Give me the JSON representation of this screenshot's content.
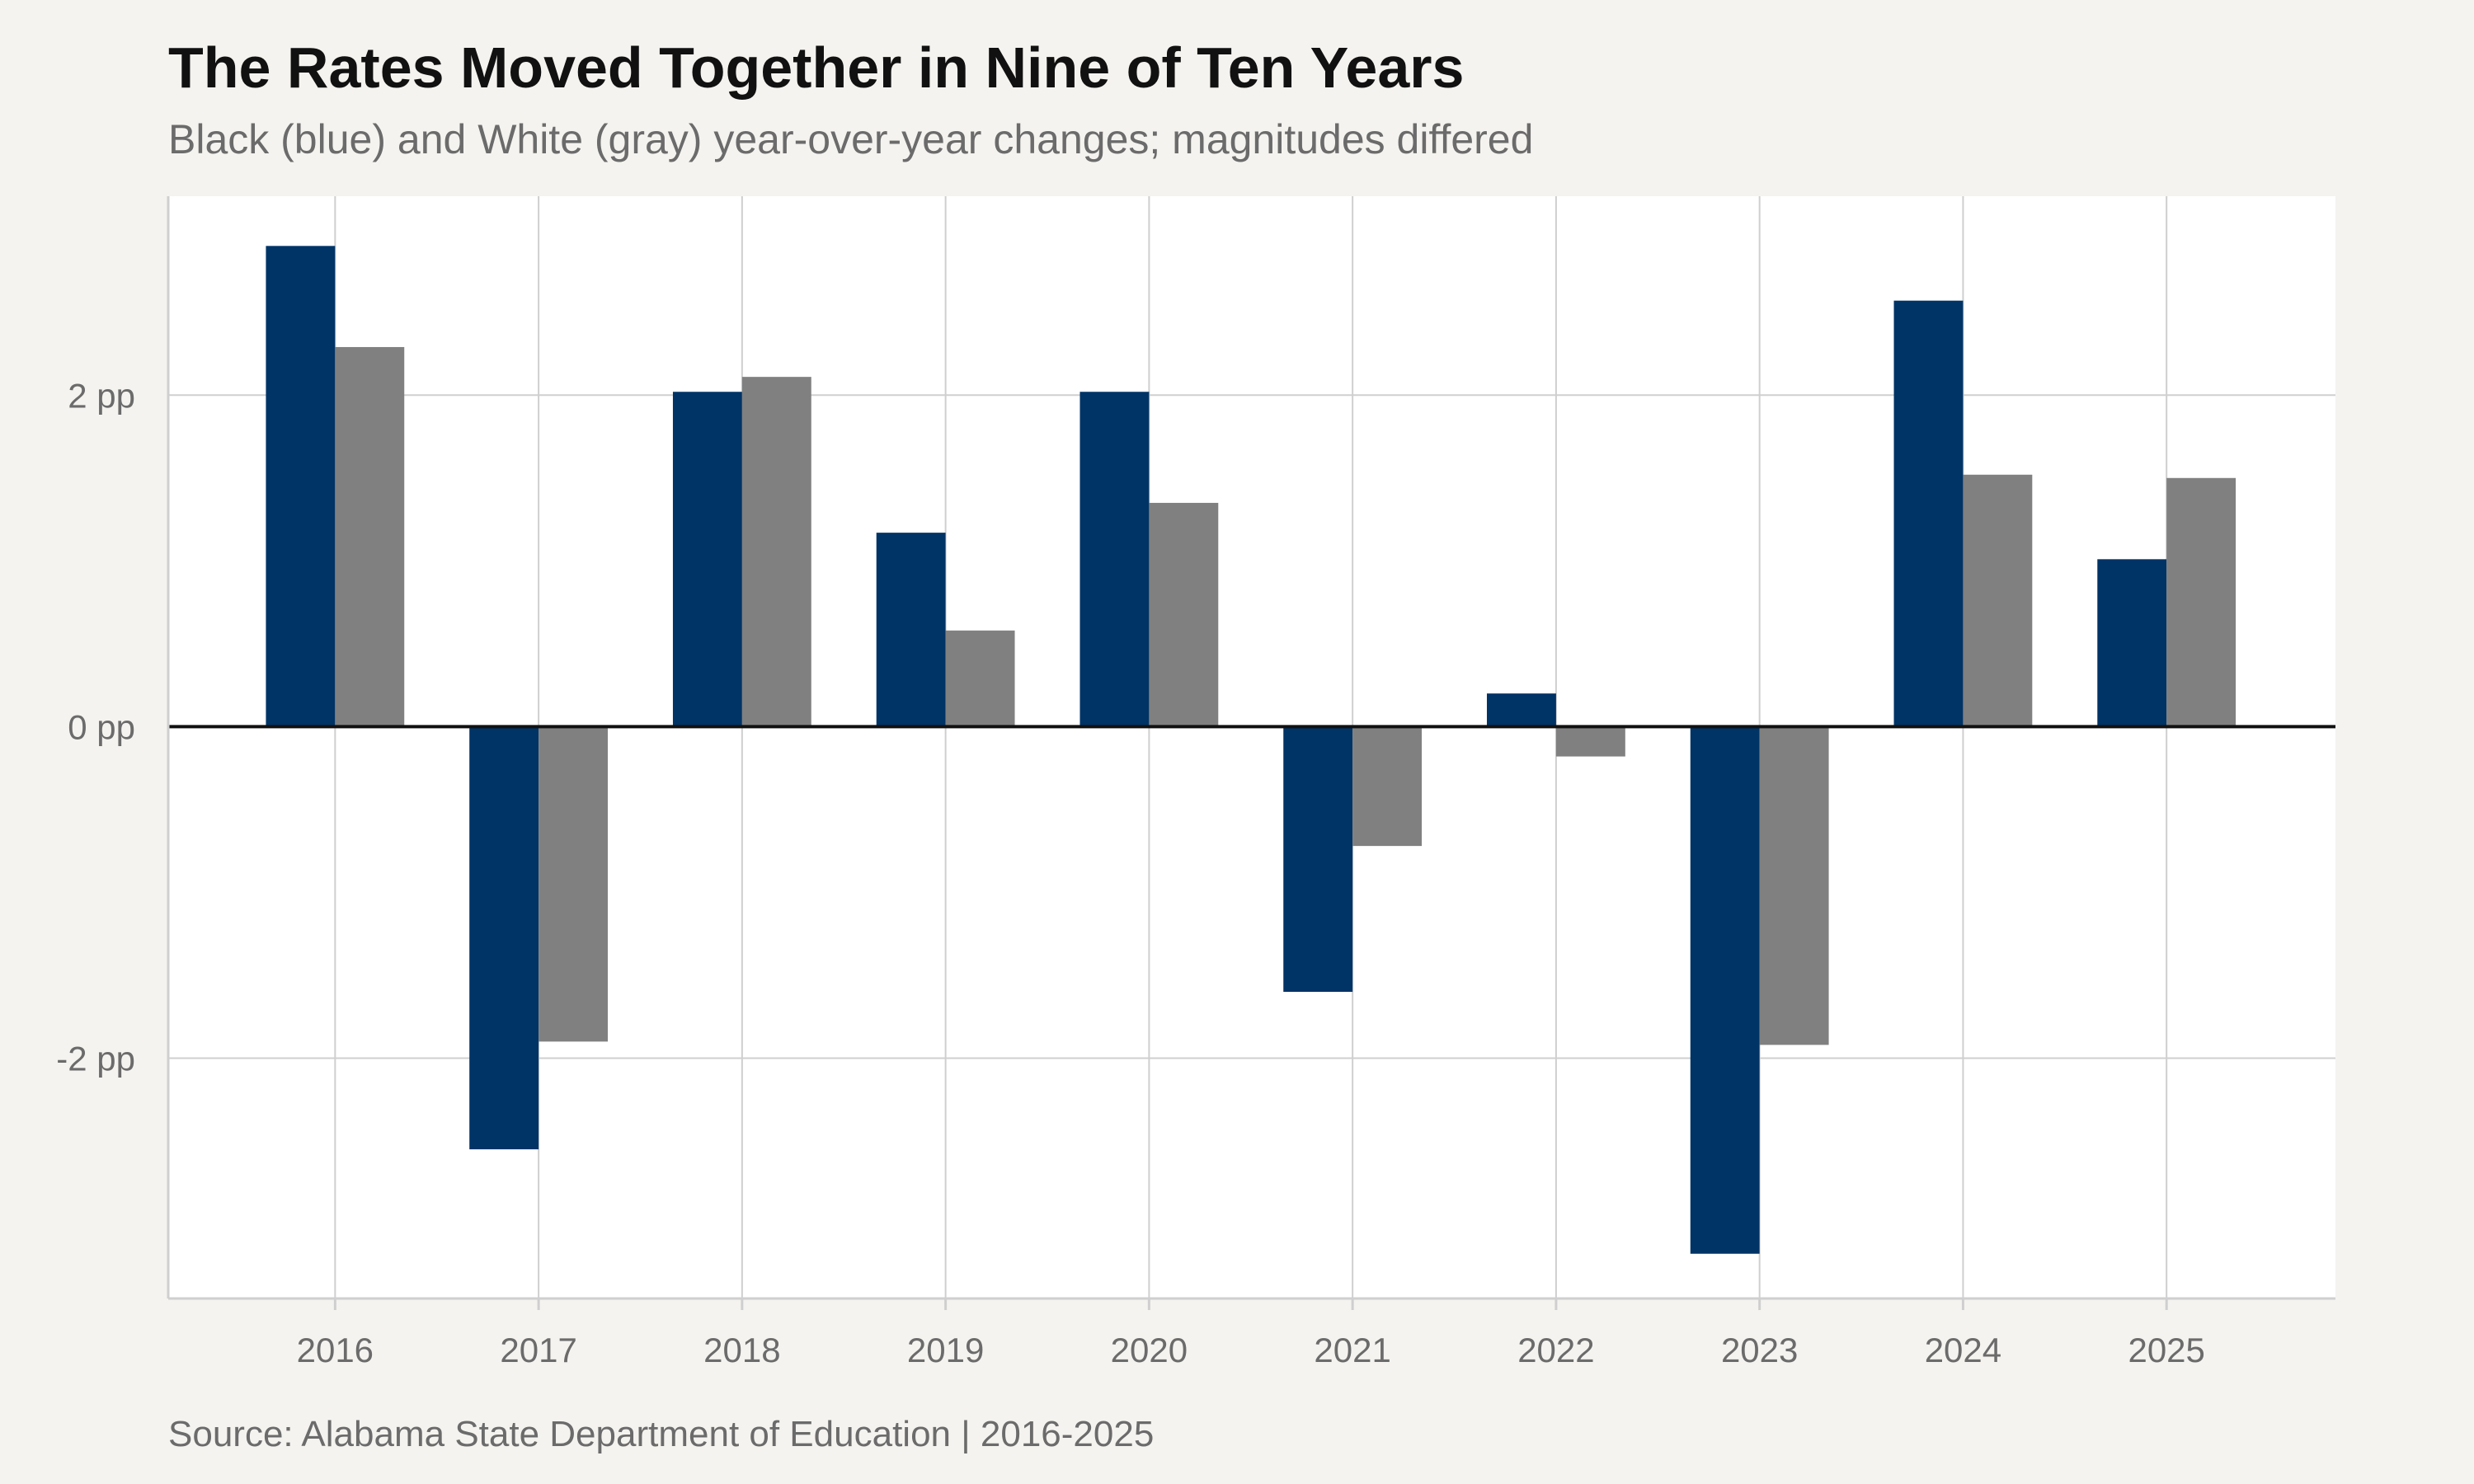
{
  "chart_data": {
    "type": "bar",
    "title": "The Rates Moved Together in Nine of Ten Years",
    "subtitle": "Black (blue) and White (gray) year-over-year changes; magnitudes differed",
    "caption": "Source: Alabama State Department of Education | 2016-2025",
    "xlabel": "",
    "ylabel": "",
    "categories": [
      "2016",
      "2017",
      "2018",
      "2019",
      "2020",
      "2021",
      "2022",
      "2023",
      "2024",
      "2025"
    ],
    "series": [
      {
        "color": "#003366",
        "values": [
          2.9,
          -2.55,
          2.02,
          1.17,
          2.02,
          -1.6,
          0.2,
          -3.18,
          2.57,
          1.01
        ]
      },
      {
        "color": "#808080",
        "values": [
          2.29,
          -1.9,
          2.11,
          0.58,
          1.35,
          -0.72,
          -0.18,
          -1.92,
          1.52,
          1.5
        ]
      }
    ],
    "y_ticks": [
      {
        "value": 2,
        "label": "2 pp"
      },
      {
        "value": 0,
        "label": "0 pp"
      },
      {
        "value": -2,
        "label": "-2 pp"
      }
    ],
    "ylim": [
      -3.45,
      3.2
    ],
    "grid": true,
    "legend": "none",
    "colors": {
      "background": "#f5f3ef",
      "panel": "#ffffff",
      "grid": "#cfcfcf",
      "zero_line": "#111111"
    }
  }
}
